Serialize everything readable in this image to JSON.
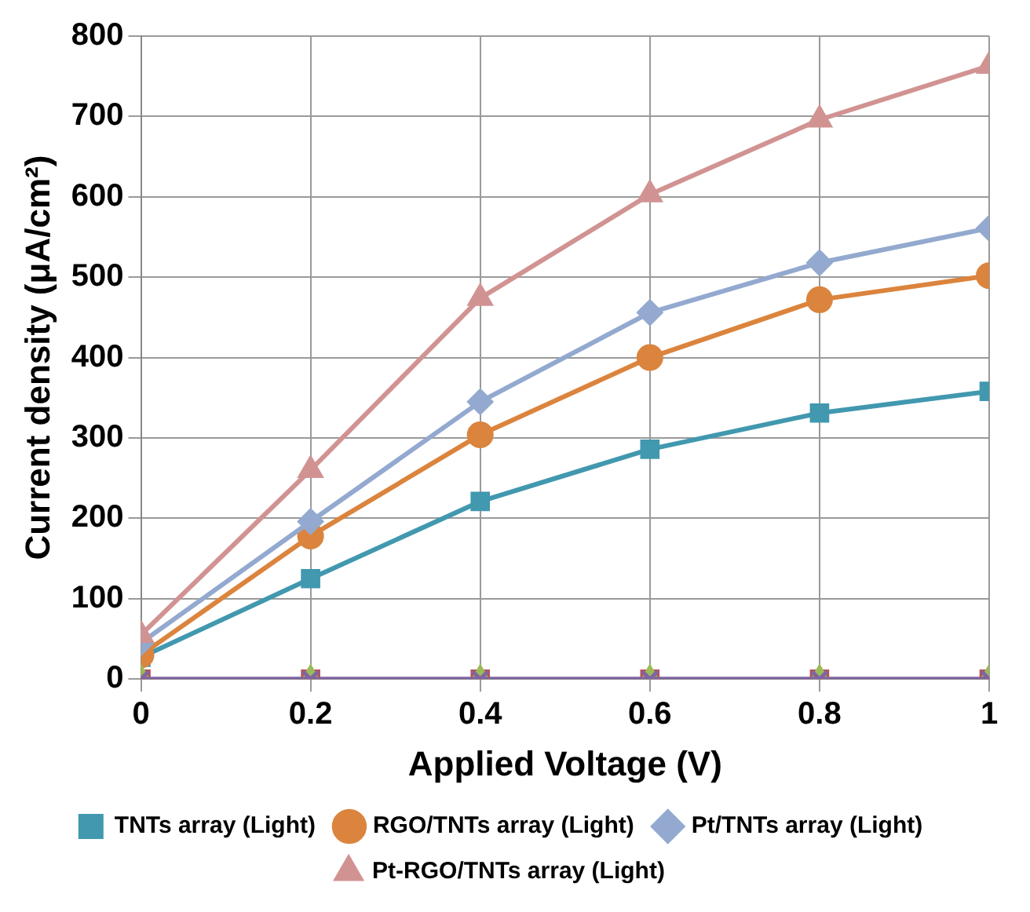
{
  "chart_data": {
    "type": "line",
    "xlabel": "Applied Voltage (V)",
    "ylabel": "Current density (μA/cm²)",
    "x": [
      0,
      0.2,
      0.4,
      0.6,
      0.8,
      1
    ],
    "xlim": [
      0,
      1
    ],
    "xticks": [
      0,
      0.2,
      0.4,
      0.6,
      0.8,
      1
    ],
    "ylim": [
      0,
      800
    ],
    "yticks": [
      0,
      100,
      200,
      300,
      400,
      500,
      600,
      700,
      800
    ],
    "grid": true,
    "legend": "bottom",
    "line_style": "solid",
    "series": [
      {
        "name": "TNTs array (Light)",
        "color": "#4198af",
        "marker": "square",
        "values": [
          27,
          125,
          221,
          286,
          331,
          358
        ]
      },
      {
        "name": "RGO/TNTs array (Light)",
        "color": "#db843d",
        "marker": "circle",
        "values": [
          30,
          178,
          304,
          400,
          472,
          502
        ]
      },
      {
        "name": "Pt/TNTs array (Light)",
        "color": "#93a9cf",
        "marker": "diamond",
        "values": [
          45,
          196,
          345,
          456,
          518,
          561
        ]
      },
      {
        "name": "Pt-RGO/TNTs array (Light)",
        "color": "#d19392",
        "marker": "triangle",
        "values": [
          55,
          260,
          474,
          603,
          696,
          763
        ]
      },
      {
        "type": "scatter",
        "color": "#c0504d",
        "marker": "square",
        "values": [
          0,
          0,
          0,
          0,
          0,
          0
        ]
      },
      {
        "type": "scatter",
        "color": "#9bbb59",
        "marker": "triangle",
        "values": [
          0,
          0,
          0,
          0,
          0,
          0
        ]
      },
      {
        "color": "#8064a2",
        "marker": "cross",
        "values": [
          0,
          0,
          0,
          0,
          0,
          0
        ]
      }
    ]
  }
}
